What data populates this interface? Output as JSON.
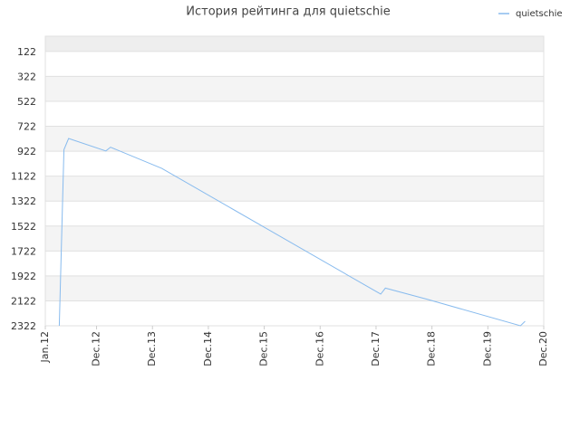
{
  "chart_data": {
    "type": "line",
    "title": "История рейтинга для quietschie",
    "x": [
      "2012-04",
      "2012-05",
      "2012-06",
      "2013-02",
      "2013-03",
      "2014-02",
      "2018-01",
      "2018-02",
      "2018-11",
      "2020-07",
      "2020-08"
    ],
    "series": [
      {
        "name": "quietschie",
        "color": "#88bbee",
        "values": [
          2322,
          910,
          820,
          920,
          890,
          1060,
          2068,
          2020,
          2110,
          2322,
          2286
        ]
      }
    ],
    "xlim": [
      "2012-01",
      "2020-12"
    ],
    "xticks": [
      {
        "value": "2012-01",
        "label": "Jan.12"
      },
      {
        "value": "2012-12",
        "label": "Dec.12"
      },
      {
        "value": "2013-12",
        "label": "Dec.13"
      },
      {
        "value": "2014-12",
        "label": "Dec.14"
      },
      {
        "value": "2015-12",
        "label": "Dec.15"
      },
      {
        "value": "2016-12",
        "label": "Dec.16"
      },
      {
        "value": "2017-12",
        "label": "Dec.17"
      },
      {
        "value": "2018-12",
        "label": "Dec.18"
      },
      {
        "value": "2019-12",
        "label": "Dec.19"
      },
      {
        "value": "2020-12",
        "label": "Dec.20"
      }
    ],
    "ylim": [
      2322,
      0
    ],
    "yticks": [
      122,
      322,
      522,
      722,
      922,
      1122,
      1322,
      1522,
      1722,
      1922,
      2122,
      2322
    ],
    "grid": true,
    "legend": "top-right"
  }
}
